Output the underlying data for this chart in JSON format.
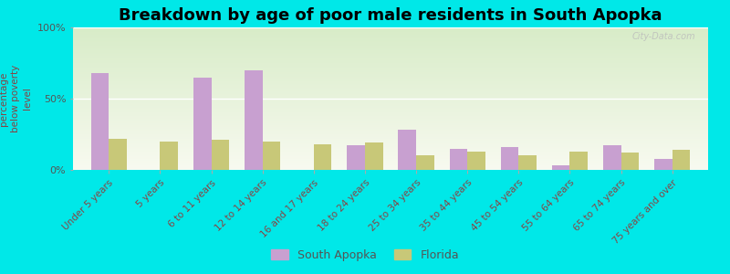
{
  "title": "Breakdown by age of poor male residents in South Apopka",
  "ylabel": "percentage\nbelow poverty\nlevel",
  "categories": [
    "Under 5 years",
    "5 years",
    "6 to 11 years",
    "12 to 14 years",
    "16 and 17 years",
    "18 to 24 years",
    "25 to 34 years",
    "35 to 44 years",
    "45 to 54 years",
    "55 to 64 years",
    "65 to 74 years",
    "75 years and over"
  ],
  "south_apopka": [
    68,
    0,
    65,
    70,
    0,
    17,
    28,
    15,
    16,
    3,
    17,
    8
  ],
  "florida": [
    22,
    20,
    21,
    20,
    18,
    19,
    10,
    13,
    10,
    13,
    12,
    14
  ],
  "sa_color": "#c8a0d0",
  "fl_color": "#c8c878",
  "background_plot_top": "#f0f5e0",
  "background_plot_bottom": "#e0edd0",
  "background_fig": "#00e8e8",
  "ylim": [
    0,
    100
  ],
  "yticks": [
    0,
    50,
    100
  ],
  "ytick_labels": [
    "0%",
    "50%",
    "100%"
  ],
  "title_fontsize": 13,
  "ylabel_fontsize": 7.5,
  "legend_labels": [
    "South Apopka",
    "Florida"
  ],
  "bar_width": 0.35
}
